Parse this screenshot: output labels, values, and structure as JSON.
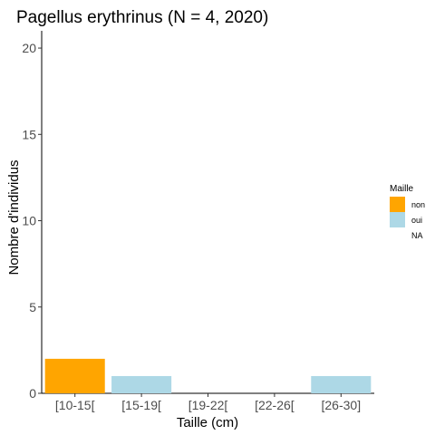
{
  "chart_data": {
    "type": "bar",
    "title": "Pagellus erythrinus (N = 4, 2020)",
    "xlabel": "Taille (cm)",
    "ylabel": "Nombre d'individus",
    "categories": [
      "[10-15[",
      "[15-19[",
      "[19-22[",
      "[22-26[",
      "[26-30]"
    ],
    "bars": [
      {
        "category": "[10-15[",
        "value": 2,
        "group": "non"
      },
      {
        "category": "[15-19[",
        "value": 1,
        "group": "oui"
      },
      {
        "category": "[19-22[",
        "value": 0,
        "group": "NA"
      },
      {
        "category": "[22-26[",
        "value": 0,
        "group": "NA"
      },
      {
        "category": "[26-30]",
        "value": 1,
        "group": "oui"
      }
    ],
    "ylim": [
      0,
      21
    ],
    "yticks": [
      0,
      5,
      10,
      15,
      20
    ],
    "grid": false,
    "legend": {
      "title": "Maille",
      "placement": "right",
      "entries": [
        {
          "label": "non",
          "color": "#FFA500"
        },
        {
          "label": "oui",
          "color": "#ADD8E6"
        },
        {
          "label": "NA",
          "color": "#FFFFFF"
        }
      ]
    }
  }
}
